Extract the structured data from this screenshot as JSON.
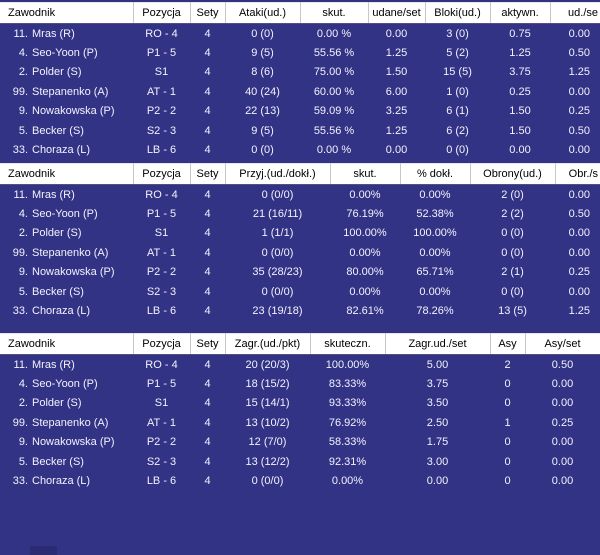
{
  "colors": {
    "background": "#333386",
    "row_text": "#f2f2fc",
    "header_background": "#ffffff",
    "header_text": "#000000",
    "header_separator": "#c8c8c8",
    "bottom_fragment": "#2b2b74"
  },
  "tables": [
    {
      "headers": [
        "Zawodnik",
        "Pozycja",
        "Sety",
        "Ataki(ud.)",
        "skut.",
        "udane/set",
        "Bloki(ud.)",
        "aktywn.",
        "ud./se"
      ],
      "rows": [
        [
          "11. Mras (R)",
          "RO - 4",
          "4",
          "0 (0)",
          "0.00 %",
          "0.00",
          "3 (0)",
          "0.75",
          "0.00"
        ],
        [
          "4. Seo-Yoon (P)",
          "P1 - 5",
          "4",
          "9 (5)",
          "55.56 %",
          "1.25",
          "5 (2)",
          "1.25",
          "0.50"
        ],
        [
          "2. Polder (S)",
          "S1",
          "4",
          "8 (6)",
          "75.00 %",
          "1.50",
          "15 (5)",
          "3.75",
          "1.25"
        ],
        [
          "99. Stepanenko (A)",
          "AT - 1",
          "4",
          "40 (24)",
          "60.00 %",
          "6.00",
          "1 (0)",
          "0.25",
          "0.00"
        ],
        [
          "9. Nowakowska (P)",
          "P2 - 2",
          "4",
          "22 (13)",
          "59.09 %",
          "3.25",
          "6 (1)",
          "1.50",
          "0.25"
        ],
        [
          "5. Becker (S)",
          "S2 - 3",
          "4",
          "9 (5)",
          "55.56 %",
          "1.25",
          "6 (2)",
          "1.50",
          "0.50"
        ],
        [
          "33. Choraza (L)",
          "LB - 6",
          "4",
          "0 (0)",
          "0.00 %",
          "0.00",
          "0 (0)",
          "0.00",
          "0.00"
        ]
      ]
    },
    {
      "headers": [
        "Zawodnik",
        "Pozycja",
        "Sety",
        "Przyj.(ud./dokł.)",
        "skut.",
        "% dokł.",
        "Obrony(ud.)",
        "Obr./s"
      ],
      "rows": [
        [
          "11. Mras (R)",
          "RO - 4",
          "4",
          "0 (0/0)",
          "0.00%",
          "0.00%",
          "2 (0)",
          "0.00"
        ],
        [
          "4. Seo-Yoon (P)",
          "P1 - 5",
          "4",
          "21 (16/11)",
          "76.19%",
          "52.38%",
          "2 (2)",
          "0.50"
        ],
        [
          "2. Polder (S)",
          "S1",
          "4",
          "1 (1/1)",
          "100.00%",
          "100.00%",
          "0 (0)",
          "0.00"
        ],
        [
          "99. Stepanenko (A)",
          "AT - 1",
          "4",
          "0 (0/0)",
          "0.00%",
          "0.00%",
          "0 (0)",
          "0.00"
        ],
        [
          "9. Nowakowska (P)",
          "P2 - 2",
          "4",
          "35 (28/23)",
          "80.00%",
          "65.71%",
          "2 (1)",
          "0.25"
        ],
        [
          "5. Becker (S)",
          "S2 - 3",
          "4",
          "0 (0/0)",
          "0.00%",
          "0.00%",
          "0 (0)",
          "0.00"
        ],
        [
          "33. Choraza (L)",
          "LB - 6",
          "4",
          "23 (19/18)",
          "82.61%",
          "78.26%",
          "13 (5)",
          "1.25"
        ]
      ]
    },
    {
      "headers": [
        "Zawodnik",
        "Pozycja",
        "Sety",
        "Zagr.(ud./pkt)",
        "skuteczn.",
        "Zagr.ud./set",
        "Asy",
        "Asy/set"
      ],
      "rows": [
        [
          "11. Mras (R)",
          "RO - 4",
          "4",
          "20 (20/3)",
          "100.00%",
          "5.00",
          "2",
          "0.50"
        ],
        [
          "4. Seo-Yoon (P)",
          "P1 - 5",
          "4",
          "18 (15/2)",
          "83.33%",
          "3.75",
          "0",
          "0.00"
        ],
        [
          "2. Polder (S)",
          "S1",
          "4",
          "15 (14/1)",
          "93.33%",
          "3.50",
          "0",
          "0.00"
        ],
        [
          "99. Stepanenko (A)",
          "AT - 1",
          "4",
          "13 (10/2)",
          "76.92%",
          "2.50",
          "1",
          "0.25"
        ],
        [
          "9. Nowakowska (P)",
          "P2 - 2",
          "4",
          "12 (7/0)",
          "58.33%",
          "1.75",
          "0",
          "0.00"
        ],
        [
          "5. Becker (S)",
          "S2 - 3",
          "4",
          "13 (12/2)",
          "92.31%",
          "3.00",
          "0",
          "0.00"
        ],
        [
          "33. Choraza (L)",
          "LB - 6",
          "4",
          "0 (0/0)",
          "0.00%",
          "0.00",
          "0",
          "0.00"
        ]
      ]
    }
  ]
}
